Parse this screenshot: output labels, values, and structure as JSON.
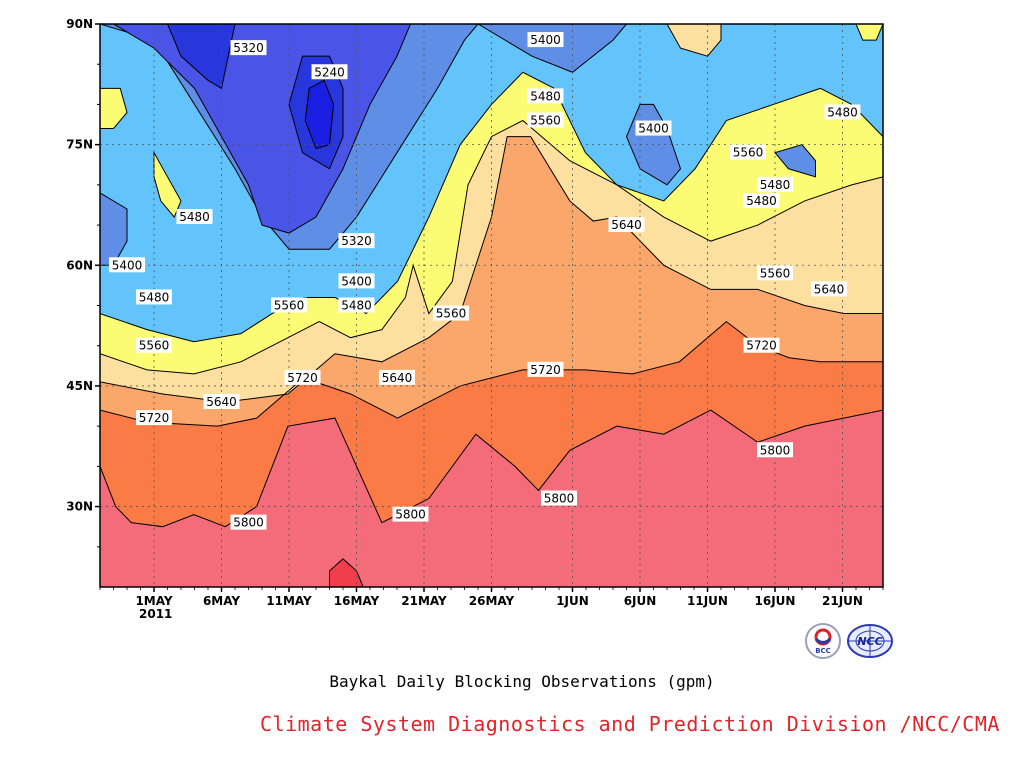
{
  "chart_data": {
    "type": "contour",
    "title": "Baykal Daily Blocking Observations (gpm)",
    "credit": "Climate System Diagnostics and Prediction Division /NCC/CMA",
    "year_label": "2011",
    "x_axis": {
      "ticks": [
        "1MAY",
        "6MAY",
        "11MAY",
        "16MAY",
        "21MAY",
        "26MAY",
        "1JUN",
        "6JUN",
        "11JUN",
        "16JUN",
        "21JUN"
      ],
      "year_under_first_tick": "2011"
    },
    "y_axis": {
      "ticks": [
        "30N",
        "45N",
        "60N",
        "75N",
        "90N"
      ],
      "values": [
        30,
        45,
        60,
        75,
        90
      ],
      "ylim": [
        20,
        90
      ]
    },
    "grid": true,
    "contour_levels": [
      5240,
      5320,
      5400,
      5480,
      5560,
      5640,
      5720,
      5800,
      5880
    ],
    "level_colors": {
      "below_5240": "#1a1ee0",
      "5240_5320": "#2837dc",
      "5320_5400": "#4a55e8",
      "5400_5480": "#5f8ee6",
      "5480_5560": "#63c3fb",
      "5560_5640": "#fbfc74",
      "5640_5720": "#fde0a0",
      "5720_5800": "#fba66b",
      "5800_5880": "#fa7b46",
      "above_5880": "#f46c7a",
      "peak": "#f03e4c"
    },
    "contour_labels": [
      {
        "value": "5320",
        "date": "2011-05-08",
        "lat": 87
      },
      {
        "value": "5240",
        "date": "2011-05-14",
        "lat": 84
      },
      {
        "value": "5400",
        "date": "2011-05-30",
        "lat": 88
      },
      {
        "value": "5480",
        "date": "2011-05-30",
        "lat": 81
      },
      {
        "value": "5560",
        "date": "2011-05-30",
        "lat": 78
      },
      {
        "value": "5400",
        "date": "2011-06-07",
        "lat": 77
      },
      {
        "value": "5560",
        "date": "2011-06-14",
        "lat": 74
      },
      {
        "value": "5480",
        "date": "2011-06-21",
        "lat": 79
      },
      {
        "value": "5480",
        "date": "2011-06-15",
        "lat": 68
      },
      {
        "value": "5480",
        "date": "2011-06-16",
        "lat": 70
      },
      {
        "value": "5640",
        "date": "2011-06-05",
        "lat": 65
      },
      {
        "value": "5560",
        "date": "2011-06-16",
        "lat": 59
      },
      {
        "value": "5640",
        "date": "2011-06-20",
        "lat": 57
      },
      {
        "value": "5720",
        "date": "2011-06-15",
        "lat": 50
      },
      {
        "value": "5480",
        "date": "2011-05-04",
        "lat": 66
      },
      {
        "value": "5400",
        "date": "2011-04-29",
        "lat": 60
      },
      {
        "value": "5320",
        "date": "2011-05-16",
        "lat": 63
      },
      {
        "value": "5400",
        "date": "2011-05-16",
        "lat": 58
      },
      {
        "value": "5480",
        "date": "2011-05-16",
        "lat": 55
      },
      {
        "value": "5560",
        "date": "2011-05-11",
        "lat": 55
      },
      {
        "value": "5560",
        "date": "2011-05-23",
        "lat": 54
      },
      {
        "value": "5480",
        "date": "2011-05-01",
        "lat": 56
      },
      {
        "value": "5560",
        "date": "2011-05-01",
        "lat": 50
      },
      {
        "value": "5640",
        "date": "2011-05-06",
        "lat": 43
      },
      {
        "value": "5720",
        "date": "2011-05-12",
        "lat": 46
      },
      {
        "value": "5640",
        "date": "2011-05-19",
        "lat": 46
      },
      {
        "value": "5720",
        "date": "2011-05-30",
        "lat": 47
      },
      {
        "value": "5720",
        "date": "2011-05-01",
        "lat": 41
      },
      {
        "value": "5800",
        "date": "2011-05-08",
        "lat": 28
      },
      {
        "value": "5800",
        "date": "2011-05-20",
        "lat": 29
      },
      {
        "value": "5800",
        "date": "2011-05-31",
        "lat": 31
      },
      {
        "value": "5800",
        "date": "2011-06-16",
        "lat": 37
      }
    ],
    "bands": [
      {
        "color_key": "5800_5880",
        "boundary": [
          [
            0,
            35
          ],
          [
            0.02,
            30
          ],
          [
            0.04,
            28
          ],
          [
            0.08,
            27.5
          ],
          [
            0.12,
            29
          ],
          [
            0.16,
            27.5
          ],
          [
            0.2,
            30
          ],
          [
            0.24,
            40
          ],
          [
            0.3,
            41
          ],
          [
            0.36,
            28
          ],
          [
            0.42,
            31
          ],
          [
            0.48,
            39
          ],
          [
            0.53,
            35
          ],
          [
            0.56,
            32
          ],
          [
            0.6,
            37
          ],
          [
            0.66,
            40
          ],
          [
            0.72,
            39
          ],
          [
            0.78,
            42
          ],
          [
            0.84,
            38
          ],
          [
            0.9,
            40
          ],
          [
            1,
            42
          ]
        ]
      },
      {
        "color_key": "5720_5800",
        "boundary": [
          [
            0,
            42
          ],
          [
            0.06,
            40.5
          ],
          [
            0.15,
            40
          ],
          [
            0.2,
            41
          ],
          [
            0.26,
            46
          ],
          [
            0.32,
            44
          ],
          [
            0.38,
            41
          ],
          [
            0.46,
            45
          ],
          [
            0.54,
            47
          ],
          [
            0.62,
            47
          ],
          [
            0.68,
            46.5
          ],
          [
            0.74,
            48
          ],
          [
            0.8,
            53
          ],
          [
            0.84,
            50
          ],
          [
            0.88,
            48.5
          ],
          [
            0.92,
            48
          ],
          [
            1,
            48
          ]
        ]
      },
      {
        "color_key": "5640_5720",
        "boundary": [
          [
            0,
            45.5
          ],
          [
            0.08,
            44
          ],
          [
            0.16,
            43
          ],
          [
            0.24,
            44
          ],
          [
            0.3,
            49
          ],
          [
            0.36,
            48
          ],
          [
            0.42,
            51
          ],
          [
            0.46,
            54
          ],
          [
            0.5,
            66
          ],
          [
            0.52,
            76
          ],
          [
            0.55,
            76
          ],
          [
            0.6,
            68
          ],
          [
            0.63,
            65.5
          ],
          [
            0.66,
            66
          ],
          [
            0.72,
            60
          ],
          [
            0.78,
            57
          ],
          [
            0.84,
            57
          ],
          [
            0.9,
            55
          ],
          [
            0.95,
            54
          ],
          [
            1,
            54
          ]
        ]
      },
      {
        "color_key": "5560_5640",
        "boundary": [
          [
            0,
            49
          ],
          [
            0.06,
            47
          ],
          [
            0.12,
            46.5
          ],
          [
            0.18,
            48
          ],
          [
            0.24,
            51
          ],
          [
            0.28,
            53
          ],
          [
            0.32,
            51
          ],
          [
            0.36,
            52
          ],
          [
            0.39,
            56
          ],
          [
            0.4,
            60
          ],
          [
            0.42,
            54
          ],
          [
            0.45,
            58
          ],
          [
            0.47,
            70
          ],
          [
            0.5,
            76
          ],
          [
            0.54,
            78
          ],
          [
            0.6,
            73
          ],
          [
            0.66,
            70
          ],
          [
            0.72,
            66
          ],
          [
            0.78,
            63
          ],
          [
            0.84,
            65
          ],
          [
            0.9,
            68
          ],
          [
            0.96,
            70
          ],
          [
            1,
            71
          ]
        ]
      },
      {
        "color_key": "5480_5560",
        "boundary": [
          [
            0,
            54
          ],
          [
            0.06,
            52
          ],
          [
            0.12,
            50.5
          ],
          [
            0.18,
            51.5
          ],
          [
            0.22,
            54
          ],
          [
            0.26,
            56
          ],
          [
            0.3,
            56
          ],
          [
            0.34,
            54
          ],
          [
            0.38,
            58
          ],
          [
            0.42,
            66
          ],
          [
            0.46,
            75
          ],
          [
            0.5,
            80
          ],
          [
            0.54,
            84
          ],
          [
            0.58,
            82
          ],
          [
            0.62,
            74
          ],
          [
            0.66,
            70
          ],
          [
            0.72,
            68
          ],
          [
            0.76,
            72
          ],
          [
            0.8,
            78
          ],
          [
            0.86,
            80
          ],
          [
            0.92,
            82
          ],
          [
            0.96,
            80
          ],
          [
            1,
            76
          ]
        ]
      }
    ]
  },
  "logos": {
    "bcc_text": "BCC",
    "ncc_text": "NCC"
  }
}
